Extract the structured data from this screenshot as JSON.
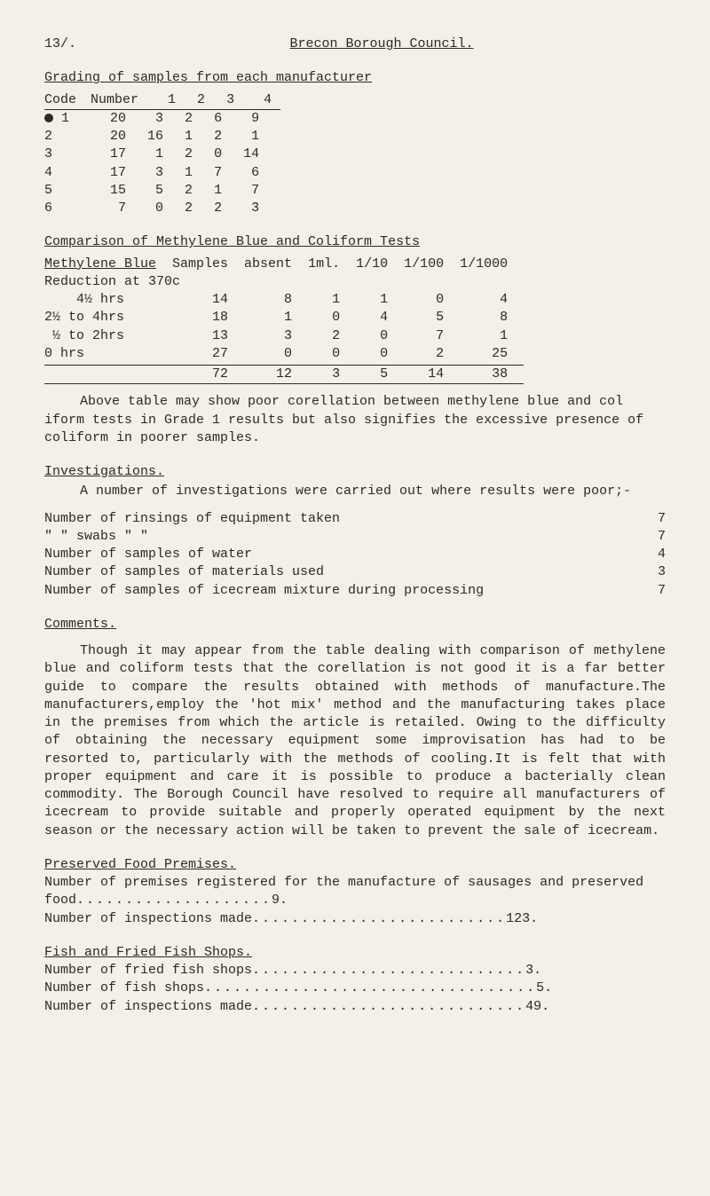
{
  "header": {
    "pageNumber": "13/.",
    "title": "Brecon Borough Council."
  },
  "gradingSection": {
    "title": "Grading of samples from each manufacturer",
    "headers": [
      "Code",
      "Number",
      "1",
      "2",
      "3",
      "4"
    ],
    "rows": [
      {
        "bullet": true,
        "code": "1",
        "number": "20",
        "c1": "3",
        "c2": "2",
        "c3": "6",
        "c4": "9"
      },
      {
        "bullet": false,
        "code": "2",
        "number": "20",
        "c1": "16",
        "c2": "1",
        "c3": "2",
        "c4": "1"
      },
      {
        "bullet": false,
        "code": "3",
        "number": "17",
        "c1": "1",
        "c2": "2",
        "c3": "0",
        "c4": "14"
      },
      {
        "bullet": false,
        "code": "4",
        "number": "17",
        "c1": "3",
        "c2": "1",
        "c3": "7",
        "c4": "6"
      },
      {
        "bullet": false,
        "code": "5",
        "number": "15",
        "c1": "5",
        "c2": "2",
        "c3": "1",
        "c4": "7"
      },
      {
        "bullet": false,
        "code": "6",
        "number": "7",
        "c1": "0",
        "c2": "2",
        "c3": "2",
        "c4": "3"
      }
    ]
  },
  "coliformSection": {
    "title": "Comparison of Methylene Blue and Coliform Tests",
    "subhead1": "Methylene Blue",
    "subhead2": "Reduction at 370c",
    "headers": [
      "",
      "Samples",
      "absent",
      "1ml.",
      "1/10",
      "1/100",
      "1/1000"
    ],
    "rows": [
      {
        "label": "    4½ hrs",
        "samples": "14",
        "absent": "8",
        "ml": "1",
        "d10": "1",
        "d100": "0",
        "d1000": "4"
      },
      {
        "label": "2½ to 4hrs",
        "samples": "18",
        "absent": "1",
        "ml": "0",
        "d10": "4",
        "d100": "5",
        "d1000": "8"
      },
      {
        "label": " ½ to 2hrs",
        "samples": "13",
        "absent": "3",
        "ml": "2",
        "d10": "0",
        "d100": "7",
        "d1000": "1"
      },
      {
        "label": "0 hrs",
        "samples": "27",
        "absent": "0",
        "ml": "0",
        "d10": "0",
        "d100": "2",
        "d1000": "25"
      }
    ],
    "totals": {
      "label": "",
      "samples": "72",
      "absent": "12",
      "ml": "3",
      "d10": "5",
      "d100": "14",
      "d1000": "38"
    }
  },
  "para1": "Above table may show poor corellation between methylene blue and col iform tests in Grade 1 results but also signifies the excessive presence of coliform in poorer samples.",
  "investigations": {
    "title": "Investigations.",
    "intro": "A number of investigations were carried out where results were poor;-",
    "rows": [
      {
        "label": "Number of rinsings of equipment taken",
        "val": "7"
      },
      {
        "label": "  \"     \"  swabs        \"      \"",
        "val": "7"
      },
      {
        "label": "Number of samples of water",
        "val": "4"
      },
      {
        "label": "Number of samples of materials used",
        "val": "3"
      },
      {
        "label": "Number of samples of icecream mixture during processing",
        "val": "7"
      }
    ]
  },
  "comments": {
    "title": "Comments.",
    "body": "Though it may appear from the table dealing with comparison of methylene blue and coliform tests that the corellation is not good it is a far better guide to compare the results obtained with methods of manufacture.The manufacturers,employ the 'hot mix' method and the manufacturing takes place in the premises from which the article is retailed. Owing to the difficulty of obtaining the necessary equipment some improvisation has had to be resorted to, particularly with the methods of cooling.It is felt that with proper equipment and care it is possible to produce a bacterially clean commodity. The Borough Council have resolved to require all manufacturers of icecream to provide suitable and properly operated equipment by the next season or the necessary action will be taken to prevent the sale of icecream."
  },
  "preserved": {
    "title": "Preserved Food Premises.",
    "rows": [
      {
        "label": "Number of premises registered for the manufacture of sausages and preserved food",
        "dots": "....................",
        "val": "9."
      },
      {
        "label": "Number of inspections made",
        "dots": "..........................",
        "val": "123."
      }
    ]
  },
  "fish": {
    "title": "Fish and Fried Fish Shops.",
    "rows": [
      {
        "label": "Number of fried fish shops",
        "dots": "............................",
        "val": "3."
      },
      {
        "label": "Number of fish shops",
        "dots": "..................................",
        "val": "5."
      },
      {
        "label": "Number of inspections made",
        "dots": "............................",
        "val": "49."
      }
    ]
  }
}
